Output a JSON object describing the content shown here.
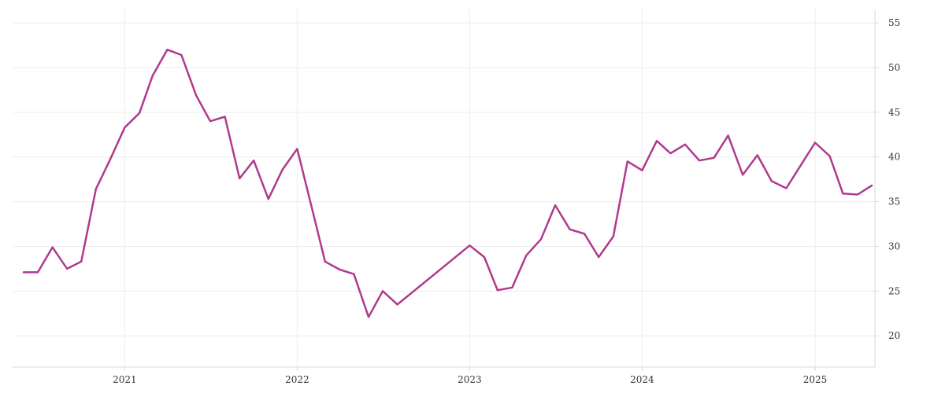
{
  "chart_data": {
    "type": "line",
    "x_axis": {
      "type": "date",
      "ticks": [
        "2021-01-01",
        "2022-01-01",
        "2023-01-01",
        "2024-01-01",
        "2025-01-01"
      ],
      "tick_labels": [
        "2021",
        "2022",
        "2023",
        "2024",
        "2025"
      ],
      "range": [
        "2020-06-01",
        "2025-05-01"
      ]
    },
    "y_axis": {
      "position": "right",
      "ticks": [
        20,
        25,
        30,
        35,
        40,
        45,
        50,
        55
      ],
      "range": [
        16.5,
        56.5
      ]
    },
    "grid": true,
    "series": [
      {
        "color": "#b03a8c",
        "points": [
          [
            "2020-06-01",
            27.1
          ],
          [
            "2020-07-01",
            27.1
          ],
          [
            "2020-08-01",
            29.9
          ],
          [
            "2020-09-01",
            27.5
          ],
          [
            "2020-10-01",
            28.3
          ],
          [
            "2020-11-01",
            36.4
          ],
          [
            "2020-12-01",
            39.7
          ],
          [
            "2021-01-01",
            43.3
          ],
          [
            "2021-02-01",
            44.9
          ],
          [
            "2021-03-01",
            49.1
          ],
          [
            "2021-04-01",
            52.0
          ],
          [
            "2021-05-01",
            51.4
          ],
          [
            "2021-06-01",
            46.9
          ],
          [
            "2021-07-01",
            44.0
          ],
          [
            "2021-08-01",
            44.5
          ],
          [
            "2021-09-01",
            37.6
          ],
          [
            "2021-10-01",
            39.6
          ],
          [
            "2021-11-01",
            35.3
          ],
          [
            "2021-12-01",
            38.6
          ],
          [
            "2022-01-01",
            40.9
          ],
          [
            "2022-02-01",
            34.3
          ],
          [
            "2022-03-01",
            28.3
          ],
          [
            "2022-04-01",
            27.4
          ],
          [
            "2022-05-01",
            26.9
          ],
          [
            "2022-06-01",
            22.1
          ],
          [
            "2022-07-01",
            25.0
          ],
          [
            "2022-08-01",
            23.5
          ],
          [
            "2023-01-01",
            30.1
          ],
          [
            "2023-02-01",
            28.8
          ],
          [
            "2023-03-01",
            25.1
          ],
          [
            "2023-04-01",
            25.4
          ],
          [
            "2023-05-01",
            29.0
          ],
          [
            "2023-06-01",
            30.8
          ],
          [
            "2023-07-01",
            34.6
          ],
          [
            "2023-08-01",
            31.9
          ],
          [
            "2023-09-01",
            31.4
          ],
          [
            "2023-10-01",
            28.8
          ],
          [
            "2023-11-01",
            31.1
          ],
          [
            "2023-12-01",
            39.5
          ],
          [
            "2024-01-01",
            38.5
          ],
          [
            "2024-02-01",
            41.8
          ],
          [
            "2024-03-01",
            40.4
          ],
          [
            "2024-04-01",
            41.4
          ],
          [
            "2024-05-01",
            39.6
          ],
          [
            "2024-06-01",
            39.9
          ],
          [
            "2024-07-01",
            42.4
          ],
          [
            "2024-08-01",
            38.0
          ],
          [
            "2024-09-01",
            40.2
          ],
          [
            "2024-10-01",
            37.3
          ],
          [
            "2024-11-01",
            36.5
          ],
          [
            "2025-01-01",
            41.6
          ],
          [
            "2025-02-01",
            40.1
          ],
          [
            "2025-03-01",
            35.9
          ],
          [
            "2025-04-01",
            35.8
          ],
          [
            "2025-05-01",
            36.8
          ]
        ]
      }
    ]
  }
}
